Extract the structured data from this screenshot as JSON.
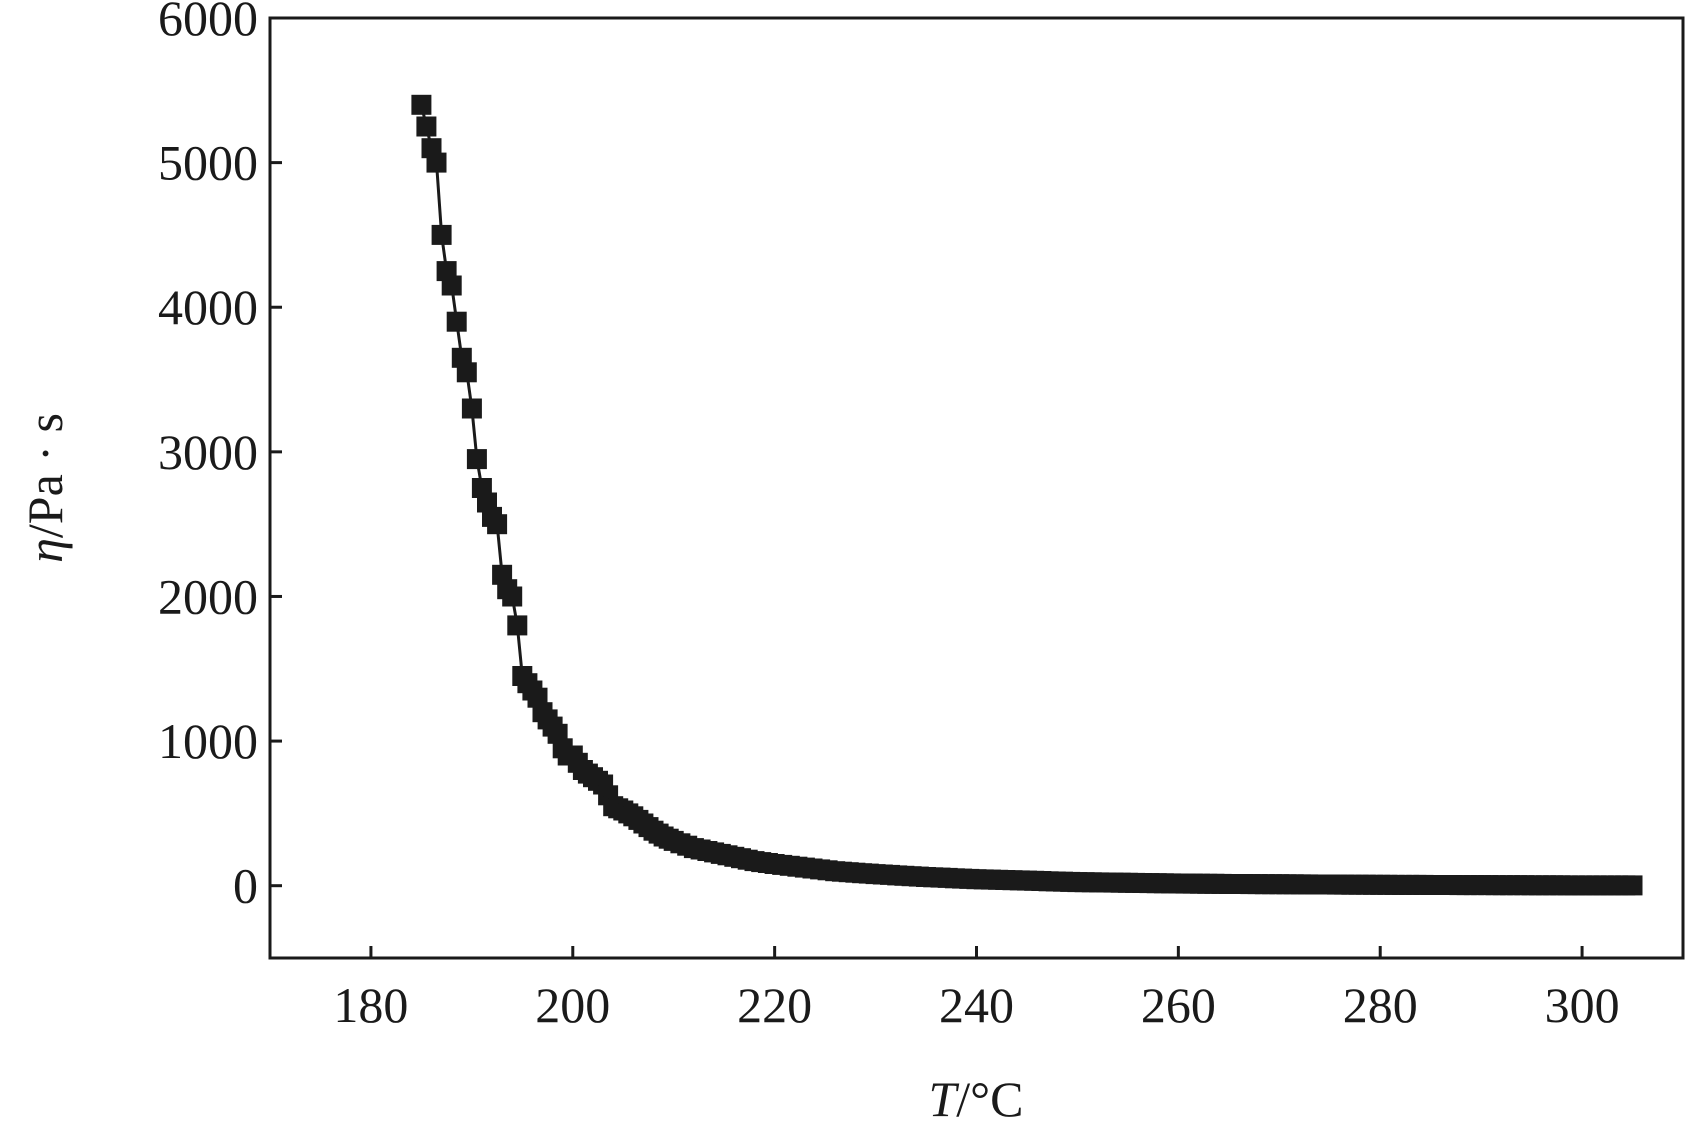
{
  "chart_data": {
    "type": "scatter",
    "xlabel_var": "T",
    "xlabel_unit": "/°C",
    "ylabel_var": "η",
    "ylabel_unit": "/Pa · s",
    "xlim": [
      170,
      310
    ],
    "ylim": [
      -500,
      6000
    ],
    "xticks": [
      180,
      200,
      220,
      240,
      260,
      280,
      300
    ],
    "yticks": [
      0,
      1000,
      2000,
      3000,
      4000,
      5000,
      6000
    ],
    "grid": false,
    "marker": "square",
    "color": "#1a1a1a",
    "series": [
      {
        "x": [
          185.0,
          185.5,
          186.0,
          186.5,
          187.0,
          187.5,
          188.0,
          188.5,
          189.0,
          189.5,
          190.0,
          190.5,
          191.0,
          191.5,
          192.0,
          192.5,
          193.0,
          193.5,
          194.0,
          194.5,
          195.0,
          195.5,
          196.0,
          196.5,
          197.0,
          197.5,
          198.0,
          198.5,
          199.0,
          199.5,
          200.0,
          201.0,
          202.0,
          203.0,
          204.0,
          205.0,
          206.0,
          207.0,
          208.0,
          209.0,
          210.0,
          212.0,
          214.0,
          216.0,
          218.0,
          220.0,
          223.0,
          226.0,
          230.0,
          235.0,
          240.0,
          245.0,
          250.0,
          255.0,
          260.0,
          265.0,
          270.0,
          275.0,
          280.0,
          285.0,
          290.0,
          295.0,
          300.0,
          305.0
        ],
        "y": [
          5400,
          5250,
          5100,
          5000,
          4500,
          4250,
          4150,
          3900,
          3650,
          3550,
          3300,
          2950,
          2750,
          2650,
          2550,
          2500,
          2150,
          2050,
          2000,
          1800,
          1450,
          1400,
          1350,
          1300,
          1200,
          1150,
          1100,
          1050,
          950,
          900,
          900,
          800,
          750,
          700,
          550,
          520,
          480,
          430,
          380,
          340,
          310,
          260,
          230,
          200,
          170,
          150,
          125,
          100,
          80,
          60,
          45,
          35,
          25,
          20,
          15,
          12,
          10,
          8,
          6,
          5,
          4,
          3,
          2,
          2
        ]
      }
    ]
  }
}
